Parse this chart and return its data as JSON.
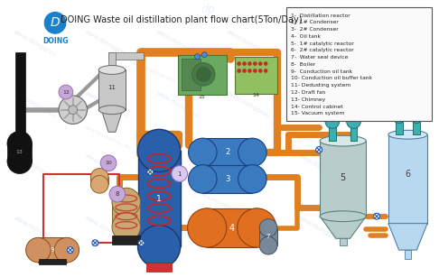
{
  "title": "DOING Waste oil distillation plant flow chart(5Ton/Day)",
  "legend_items": [
    "1-  Distillation reactor",
    "2-  1# Condenser",
    "3-  2# Condenser",
    "4-  Oil tank",
    "5-  1# catalytic reactor",
    "6-  2# catalytic reactor",
    "7-  Water seal device",
    "8-  Boiler",
    "9-  Conduction oil tank",
    "10- Conduction oil buffer tank",
    "11- Dedusting system",
    "12- Draft fan",
    "13- Chimney",
    "14- Control cabinet",
    "15- Vacuum system"
  ],
  "bg_color": "#ffffff",
  "pipe_orange": "#e08020",
  "pipe_red": "#cc3333",
  "pipe_gray": "#999999",
  "reactor_blue": "#2a5faa",
  "condenser_blue": "#3a7abf",
  "oil_tank_orange": "#e07020",
  "cat1_gray": "#b8cccc",
  "cat2_lightblue": "#b8d8f0",
  "teal_nozzle": "#3ab0b0",
  "boiler_tan": "#c8a870",
  "cond_oil_tan": "#d09060",
  "chimney_black": "#111111",
  "dedusting_gray": "#c8c8c8",
  "fan_gray": "#d0d0d0",
  "control_green": "#90c060",
  "buffer_lavender": "#c8a8d8",
  "boiler_bubble": "#c8a8d8",
  "logo_blue": "#1a80cc",
  "water_seal_gray": "#778899",
  "valve_blue": "#2255aa"
}
